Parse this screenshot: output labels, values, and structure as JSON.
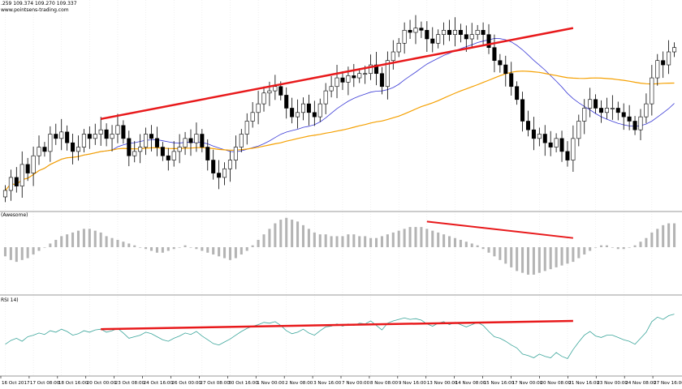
{
  "header": {
    "ohlc": ".259 109.374 109.270 109.337",
    "watermark": "www.pointsens-trading.com"
  },
  "panels": {
    "awesome_label": "(Awesome)",
    "rsi_label": "RSI 14)"
  },
  "colors": {
    "candle_up": "#ffffff",
    "candle_down": "#000000",
    "ma_fast": "#3a3ad6",
    "ma_slow": "#f5a000",
    "ao_bar": "#b4b4b4",
    "rsi_line": "#3aa59a",
    "divergence": "#e8191b",
    "separator": "#9a9a9a",
    "grid": "#d9d9d9"
  },
  "chart_data": [
    {
      "type": "candlestick",
      "panel": "price",
      "bars": 120,
      "closes": [
        107.6,
        107.9,
        107.7,
        108.2,
        108.0,
        108.4,
        108.6,
        108.5,
        108.9,
        108.8,
        108.95,
        108.7,
        108.5,
        108.6,
        108.9,
        108.8,
        108.9,
        109.0,
        108.8,
        108.9,
        109.1,
        108.8,
        108.4,
        108.5,
        108.6,
        108.9,
        108.8,
        108.6,
        108.4,
        108.3,
        108.5,
        108.6,
        108.8,
        108.7,
        108.9,
        108.6,
        108.3,
        108.0,
        107.9,
        108.1,
        108.3,
        108.6,
        108.9,
        109.2,
        109.4,
        109.6,
        109.85,
        109.9,
        110.0,
        109.8,
        109.5,
        109.3,
        109.4,
        109.6,
        109.4,
        109.3,
        109.6,
        109.9,
        110.0,
        110.2,
        110.1,
        110.25,
        110.2,
        110.3,
        110.3,
        110.5,
        110.3,
        110.0,
        110.6,
        110.8,
        111.0,
        111.3,
        111.25,
        111.35,
        111.3,
        111.1,
        111.0,
        111.2,
        111.3,
        111.2,
        111.3,
        111.2,
        111.1,
        111.2,
        111.3,
        111.2,
        110.9,
        110.6,
        110.5,
        110.3,
        110.0,
        109.7,
        109.2,
        109.0,
        108.8,
        108.9,
        108.7,
        108.6,
        108.8,
        108.5,
        108.3,
        108.8,
        109.2,
        109.5,
        109.7,
        109.5,
        109.4,
        109.5,
        109.5,
        109.4,
        109.3,
        109.2,
        109.0,
        109.3,
        109.6,
        110.2,
        110.6,
        110.5,
        110.8,
        110.9
      ],
      "moving_averages": [
        {
          "color_key": "ma_fast",
          "period_bars": 20
        },
        {
          "color_key": "ma_slow",
          "period_bars": 50
        }
      ],
      "divergence_line": {
        "from_bar": 17,
        "to_bar": 101,
        "from_value": 109.25,
        "to_value": 111.35
      }
    },
    {
      "type": "bar",
      "panel": "awesome",
      "values": [
        -5,
        -7,
        -8,
        -7,
        -6,
        -4,
        -2,
        0,
        2,
        4,
        6,
        7,
        8,
        9,
        10,
        10,
        9,
        8,
        6,
        5,
        4,
        3,
        2,
        1,
        0,
        -1,
        -2,
        -3,
        -3,
        -2,
        -1,
        0,
        1,
        0,
        -1,
        -2,
        -3,
        -4,
        -5,
        -6,
        -7,
        -6,
        -4,
        -2,
        1,
        4,
        7,
        10,
        13,
        15,
        16,
        15,
        14,
        12,
        10,
        8,
        7,
        7,
        6,
        6,
        6,
        7,
        7,
        6,
        6,
        5,
        5,
        6,
        7,
        8,
        9,
        10,
        11,
        11,
        11,
        10,
        9,
        8,
        7,
        6,
        5,
        4,
        3,
        2,
        1,
        -1,
        -3,
        -5,
        -7,
        -9,
        -11,
        -13,
        -14,
        -15,
        -15,
        -14,
        -13,
        -12,
        -11,
        -10,
        -9,
        -8,
        -6,
        -4,
        -2,
        0,
        1,
        1,
        0,
        -1,
        -1,
        0,
        1,
        3,
        5,
        8,
        10,
        12,
        13,
        13
      ],
      "divergence_line": {
        "from_bar": 75,
        "to_bar": 101,
        "from_value": 14,
        "to_value": 5
      }
    },
    {
      "type": "line",
      "panel": "rsi",
      "ylim": [
        0,
        100
      ],
      "values": [
        40,
        45,
        48,
        44,
        50,
        52,
        55,
        53,
        58,
        56,
        60,
        57,
        52,
        54,
        58,
        56,
        59,
        60,
        56,
        58,
        61,
        55,
        48,
        50,
        52,
        56,
        54,
        50,
        46,
        44,
        48,
        51,
        55,
        53,
        57,
        51,
        46,
        41,
        39,
        43,
        47,
        52,
        57,
        61,
        64,
        66,
        69,
        68,
        70,
        65,
        58,
        54,
        56,
        60,
        55,
        52,
        58,
        63,
        64,
        67,
        64,
        67,
        65,
        68,
        67,
        71,
        65,
        59,
        68,
        71,
        73,
        75,
        73,
        74,
        72,
        67,
        64,
        68,
        70,
        66,
        69,
        66,
        63,
        66,
        69,
        65,
        57,
        50,
        48,
        44,
        39,
        35,
        27,
        25,
        22,
        27,
        24,
        22,
        29,
        24,
        21,
        33,
        43,
        52,
        57,
        51,
        49,
        52,
        52,
        49,
        46,
        44,
        40,
        48,
        56,
        70,
        76,
        73,
        78,
        80
      ],
      "divergence_line": {
        "from_bar": 17,
        "to_bar": 101,
        "from_value": 60,
        "to_value": 71
      }
    }
  ],
  "time_axis": {
    "labels": [
      "16 Oct 2017",
      "17 Oct 08:00",
      "18 Oct 16:00",
      "20 Oct 00:00",
      "23 Oct 08:00",
      "24 Oct 16:00",
      "26 Oct 00:00",
      "27 Oct 08:00",
      "30 Oct 16:00",
      "1 Nov 00:00",
      "2 Nov 08:00",
      "3 Nov 16:00",
      "7 Nov 00:00",
      "8 Nov 08:00",
      "9 Nov 16:00",
      "13 Nov 00:00",
      "14 Nov 08:00",
      "15 Nov 16:00",
      "17 Nov 00:00",
      "20 Nov 08:00",
      "21 Nov 16:00",
      "23 Nov 00:00",
      "24 Nov 08:00",
      "27 Nov 16:00"
    ]
  }
}
